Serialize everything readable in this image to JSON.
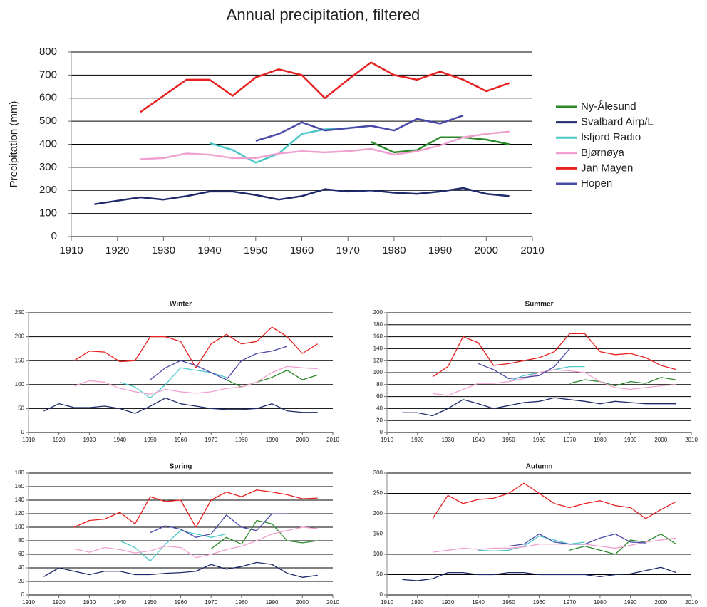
{
  "chart_data": [
    {
      "type": "line",
      "title": "Annual precipitation, filtered",
      "ylabel": "Precipitation (mm)",
      "xlim": [
        1910,
        2010
      ],
      "xticks": [
        1910,
        1920,
        1930,
        1940,
        1950,
        1960,
        1970,
        1980,
        1990,
        2000,
        2010
      ],
      "ylim": [
        0,
        800
      ],
      "yticks": [
        0,
        100,
        200,
        300,
        400,
        500,
        600,
        700,
        800
      ],
      "grid": true,
      "legend": "right",
      "x": [
        1915,
        1920,
        1925,
        1930,
        1935,
        1940,
        1945,
        1950,
        1955,
        1960,
        1965,
        1970,
        1975,
        1980,
        1985,
        1990,
        1995,
        2000,
        2005
      ],
      "series": [
        {
          "name": "Ny-Ålesund",
          "color": "#2a8a2a",
          "values": [
            null,
            null,
            null,
            null,
            null,
            null,
            null,
            null,
            null,
            null,
            null,
            null,
            410,
            365,
            375,
            430,
            430,
            420,
            400
          ]
        },
        {
          "name": "Svalbard Airp/L",
          "color": "#1f2a6b",
          "values": [
            140,
            155,
            170,
            160,
            175,
            195,
            195,
            180,
            160,
            175,
            205,
            195,
            200,
            190,
            185,
            195,
            210,
            185,
            175
          ]
        },
        {
          "name": "Isfjord Radio",
          "color": "#4cc8c8",
          "values": [
            null,
            null,
            null,
            null,
            null,
            405,
            375,
            320,
            360,
            445,
            465,
            470,
            480,
            null,
            null,
            null,
            null,
            null,
            null
          ]
        },
        {
          "name": "Bjørnøya",
          "color": "#f0a0d0",
          "values": [
            null,
            null,
            335,
            340,
            360,
            355,
            340,
            340,
            360,
            370,
            365,
            370,
            380,
            355,
            370,
            395,
            430,
            445,
            455
          ]
        },
        {
          "name": "Jan Mayen",
          "color": "#e82020",
          "values": [
            null,
            null,
            540,
            610,
            680,
            680,
            610,
            690,
            725,
            700,
            600,
            680,
            755,
            700,
            680,
            715,
            680,
            630,
            665
          ]
        },
        {
          "name": "Hopen",
          "color": "#4a4aa8",
          "values": [
            null,
            null,
            null,
            null,
            null,
            null,
            null,
            415,
            445,
            495,
            460,
            470,
            480,
            460,
            510,
            490,
            525,
            null,
            null
          ]
        }
      ]
    },
    {
      "type": "line",
      "title": "Winter",
      "xlim": [
        1910,
        2010
      ],
      "xticks": [
        1910,
        1920,
        1930,
        1940,
        1950,
        1960,
        1970,
        1980,
        1990,
        2000,
        2010
      ],
      "ylim": [
        0,
        250
      ],
      "yticks": [
        0,
        50,
        100,
        150,
        200,
        250
      ],
      "grid": true,
      "x": [
        1915,
        1920,
        1925,
        1930,
        1935,
        1940,
        1945,
        1950,
        1955,
        1960,
        1965,
        1970,
        1975,
        1980,
        1985,
        1990,
        1995,
        2000,
        2005
      ],
      "series": [
        {
          "color": "#2a8a2a",
          "values": [
            null,
            null,
            null,
            null,
            null,
            null,
            null,
            null,
            null,
            null,
            null,
            null,
            110,
            95,
            105,
            115,
            130,
            110,
            120
          ]
        },
        {
          "color": "#1f2a6b",
          "values": [
            45,
            60,
            52,
            52,
            55,
            50,
            40,
            55,
            72,
            60,
            55,
            50,
            48,
            48,
            50,
            60,
            45,
            42,
            42
          ]
        },
        {
          "color": "#4cc8c8",
          "values": [
            null,
            null,
            null,
            null,
            null,
            105,
            95,
            72,
            100,
            135,
            130,
            125,
            115,
            null,
            null,
            null,
            null,
            null,
            null
          ]
        },
        {
          "color": "#f0a0d0",
          "values": [
            null,
            null,
            97,
            108,
            105,
            92,
            85,
            80,
            90,
            85,
            82,
            85,
            92,
            95,
            105,
            125,
            138,
            135,
            133
          ]
        },
        {
          "color": "#e82020",
          "values": [
            null,
            null,
            150,
            170,
            168,
            148,
            150,
            200,
            200,
            190,
            135,
            185,
            205,
            185,
            190,
            220,
            200,
            165,
            185
          ]
        },
        {
          "color": "#4a4aa8",
          "values": [
            null,
            null,
            null,
            null,
            null,
            null,
            null,
            110,
            135,
            150,
            140,
            125,
            110,
            150,
            165,
            170,
            180,
            null,
            null
          ]
        }
      ]
    },
    {
      "type": "line",
      "title": "Summer",
      "xlim": [
        1910,
        2010
      ],
      "xticks": [
        1910,
        1920,
        1930,
        1940,
        1950,
        1960,
        1970,
        1980,
        1990,
        2000,
        2010
      ],
      "ylim": [
        0,
        200
      ],
      "yticks": [
        0,
        20,
        40,
        60,
        80,
        100,
        120,
        140,
        160,
        180,
        200
      ],
      "grid": true,
      "x": [
        1915,
        1920,
        1925,
        1930,
        1935,
        1940,
        1945,
        1950,
        1955,
        1960,
        1965,
        1970,
        1975,
        1980,
        1985,
        1990,
        1995,
        2000,
        2005
      ],
      "series": [
        {
          "color": "#2a8a2a",
          "values": [
            null,
            null,
            null,
            null,
            null,
            null,
            null,
            null,
            null,
            null,
            null,
            82,
            88,
            85,
            78,
            85,
            82,
            92,
            88
          ]
        },
        {
          "color": "#1f2a6b",
          "values": [
            33,
            33,
            28,
            40,
            55,
            48,
            40,
            45,
            50,
            52,
            58,
            55,
            52,
            48,
            52,
            50,
            48,
            48,
            48
          ]
        },
        {
          "color": "#4cc8c8",
          "values": [
            null,
            null,
            null,
            null,
            null,
            null,
            null,
            85,
            95,
            100,
            105,
            110,
            110,
            null,
            null,
            null,
            null,
            null,
            null
          ]
        },
        {
          "color": "#f0a0d0",
          "values": [
            null,
            null,
            65,
            62,
            72,
            82,
            82,
            85,
            90,
            100,
            105,
            103,
            100,
            85,
            75,
            72,
            75,
            78,
            80
          ]
        },
        {
          "color": "#e82020",
          "values": [
            null,
            null,
            93,
            110,
            160,
            150,
            112,
            115,
            120,
            125,
            135,
            165,
            165,
            135,
            130,
            132,
            125,
            112,
            105
          ]
        },
        {
          "color": "#4a4aa8",
          "values": [
            null,
            null,
            null,
            null,
            null,
            115,
            105,
            90,
            92,
            95,
            110,
            140,
            null,
            null,
            null,
            null,
            null,
            null,
            null
          ]
        }
      ]
    },
    {
      "type": "line",
      "title": "Spring",
      "xlim": [
        1910,
        2010
      ],
      "xticks": [
        1910,
        1920,
        1930,
        1940,
        1950,
        1960,
        1970,
        1980,
        1990,
        2000,
        2010
      ],
      "ylim": [
        0,
        180
      ],
      "yticks": [
        0,
        20,
        40,
        60,
        80,
        100,
        120,
        140,
        160,
        180
      ],
      "grid": true,
      "x": [
        1915,
        1920,
        1925,
        1930,
        1935,
        1940,
        1945,
        1950,
        1955,
        1960,
        1965,
        1970,
        1975,
        1980,
        1985,
        1990,
        1995,
        2000,
        2005
      ],
      "series": [
        {
          "color": "#2a8a2a",
          "values": [
            null,
            null,
            null,
            null,
            null,
            null,
            null,
            null,
            null,
            null,
            null,
            68,
            85,
            75,
            110,
            105,
            80,
            77,
            80
          ]
        },
        {
          "color": "#1f2a6b",
          "values": [
            27,
            40,
            35,
            30,
            35,
            35,
            30,
            30,
            32,
            33,
            35,
            45,
            38,
            42,
            48,
            45,
            32,
            26,
            29
          ]
        },
        {
          "color": "#4cc8c8",
          "values": [
            null,
            null,
            null,
            null,
            null,
            80,
            70,
            50,
            75,
            95,
            90,
            85,
            90,
            null,
            null,
            null,
            null,
            null,
            null
          ]
        },
        {
          "color": "#f0a0d0",
          "values": [
            null,
            null,
            68,
            63,
            70,
            67,
            62,
            65,
            72,
            70,
            55,
            60,
            67,
            72,
            80,
            90,
            95,
            100,
            98
          ]
        },
        {
          "color": "#e82020",
          "values": [
            null,
            null,
            100,
            110,
            112,
            122,
            105,
            145,
            138,
            140,
            100,
            140,
            152,
            145,
            155,
            152,
            148,
            142,
            143
          ]
        },
        {
          "color": "#4a4aa8",
          "values": [
            null,
            null,
            null,
            null,
            null,
            null,
            null,
            92,
            102,
            97,
            85,
            90,
            118,
            100,
            95,
            120,
            120,
            null,
            null
          ]
        }
      ]
    },
    {
      "type": "line",
      "title": "Autumn",
      "xlim": [
        1910,
        2010
      ],
      "xticks": [
        1910,
        1920,
        1930,
        1940,
        1950,
        1960,
        1970,
        1980,
        1990,
        2000,
        2010
      ],
      "ylim": [
        0,
        300
      ],
      "yticks": [
        0,
        50,
        100,
        150,
        200,
        250,
        300
      ],
      "grid": true,
      "x": [
        1915,
        1920,
        1925,
        1930,
        1935,
        1940,
        1945,
        1950,
        1955,
        1960,
        1965,
        1970,
        1975,
        1980,
        1985,
        1990,
        1995,
        2000,
        2005
      ],
      "series": [
        {
          "color": "#2a8a2a",
          "values": [
            null,
            null,
            null,
            null,
            null,
            null,
            null,
            null,
            null,
            null,
            null,
            110,
            120,
            110,
            100,
            135,
            130,
            150,
            125
          ]
        },
        {
          "color": "#1f2a6b",
          "values": [
            38,
            35,
            40,
            55,
            55,
            50,
            50,
            55,
            55,
            50,
            50,
            50,
            50,
            45,
            50,
            52,
            60,
            68,
            55
          ]
        },
        {
          "color": "#4cc8c8",
          "values": [
            null,
            null,
            null,
            null,
            null,
            110,
            108,
            110,
            120,
            145,
            135,
            125,
            130,
            null,
            null,
            null,
            null,
            null,
            null
          ]
        },
        {
          "color": "#f0a0d0",
          "values": [
            null,
            null,
            105,
            110,
            115,
            112,
            115,
            115,
            118,
            125,
            125,
            125,
            125,
            120,
            115,
            122,
            130,
            135,
            140
          ]
        },
        {
          "color": "#e82020",
          "values": [
            null,
            null,
            188,
            245,
            225,
            235,
            238,
            250,
            275,
            250,
            225,
            215,
            225,
            232,
            220,
            215,
            188,
            210,
            230
          ]
        },
        {
          "color": "#4a4aa8",
          "values": [
            null,
            null,
            null,
            null,
            null,
            null,
            null,
            120,
            125,
            150,
            130,
            125,
            125,
            140,
            150,
            130,
            128,
            null,
            null
          ]
        }
      ]
    }
  ]
}
